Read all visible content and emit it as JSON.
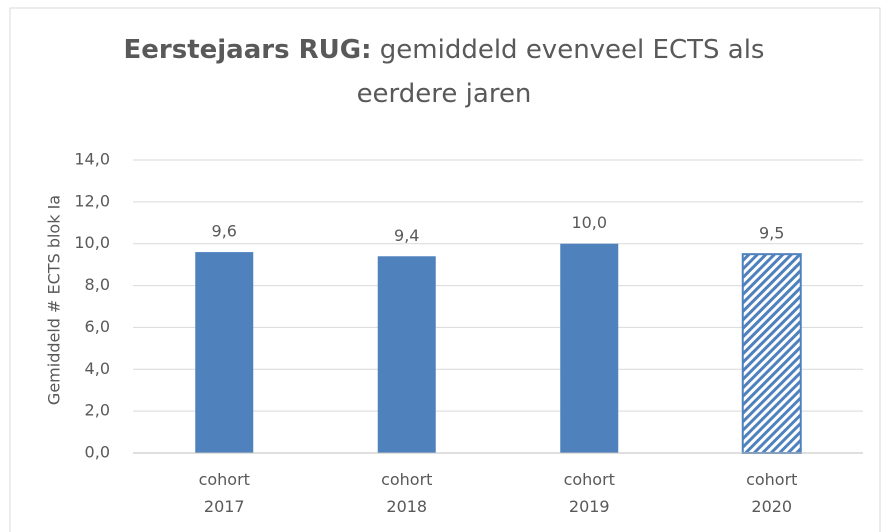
{
  "chart_data": {
    "type": "bar",
    "title_bold": "Eerstejaars RUG:",
    "title": "gemiddeld evenveel ECTS als eerdere jaren",
    "y_label": "Gemiddeld # ECTS blok Ia",
    "categories": [
      "cohort 2017",
      "cohort 2018",
      "cohort 2019",
      "cohort 2020"
    ],
    "values": [
      9.6,
      9.4,
      10.0,
      9.5
    ],
    "value_labels": [
      "9,6",
      "9,4",
      "10,0",
      "9,5"
    ],
    "fills": [
      "solid",
      "solid",
      "solid",
      "hatched"
    ],
    "color": "#4f81bd",
    "ylim": [
      0,
      14
    ],
    "yticks": [
      {
        "value": 0,
        "label": "0,0"
      },
      {
        "value": 2,
        "label": "2,0"
      },
      {
        "value": 4,
        "label": "4,0"
      },
      {
        "value": 6,
        "label": "6,0"
      },
      {
        "value": 8,
        "label": "8,0"
      },
      {
        "value": 10,
        "label": "10,0"
      },
      {
        "value": 12,
        "label": "12,0"
      },
      {
        "value": 14,
        "label": "14,0"
      }
    ],
    "grid": true
  }
}
